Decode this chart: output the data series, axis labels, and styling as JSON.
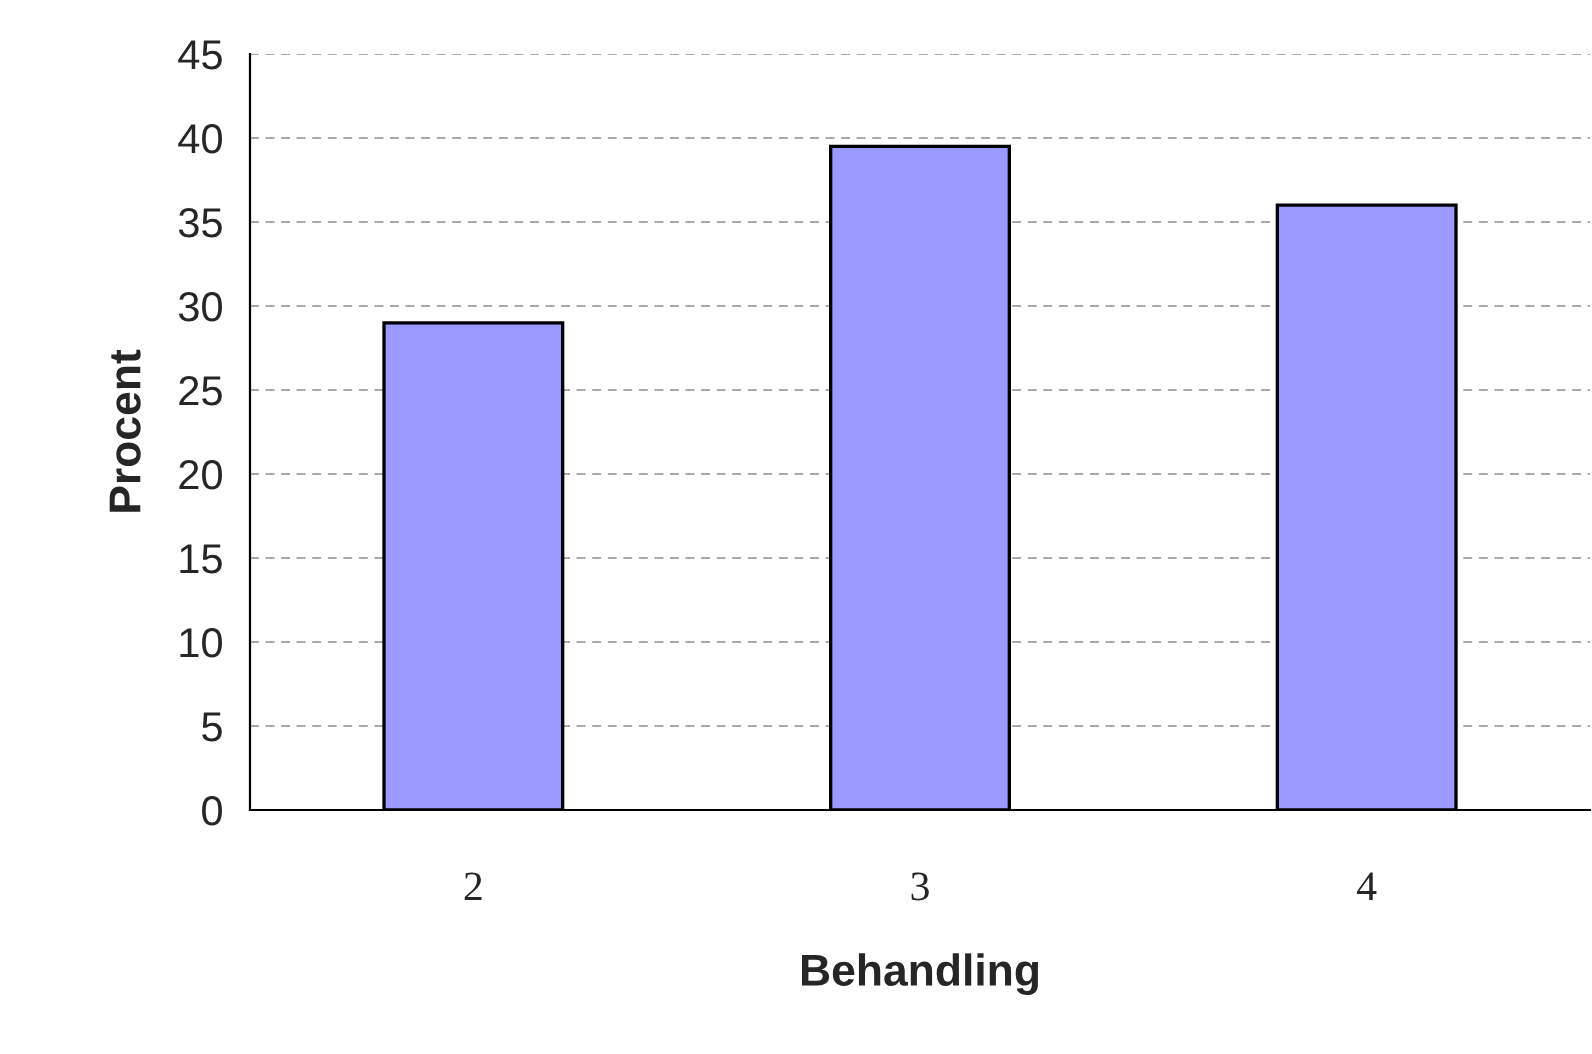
{
  "chart_data": {
    "type": "bar",
    "xlabel": "Behandling",
    "ylabel": "Procent",
    "categories": [
      "2",
      "3",
      "4"
    ],
    "values": [
      29,
      39.5,
      36
    ],
    "color": "#9999ff",
    "ylim": [
      0,
      45
    ],
    "yticks": [
      0,
      5,
      10,
      15,
      20,
      25,
      30,
      35,
      40,
      45
    ],
    "grid": "y"
  }
}
